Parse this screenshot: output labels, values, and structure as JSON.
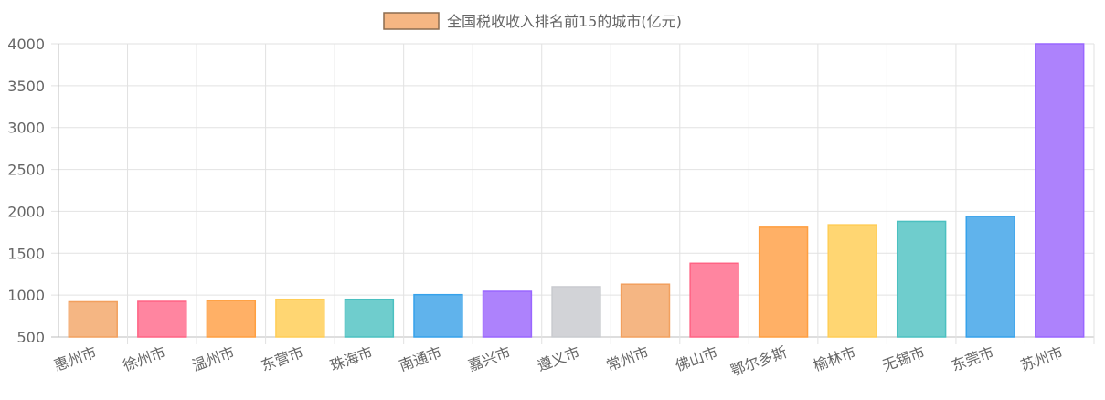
{
  "chart_data": {
    "type": "bar",
    "title": "",
    "xlabel": "",
    "ylabel": "",
    "legend": {
      "position": "top",
      "label": "全国税收收入排名前15的城市(亿元)",
      "color": "#f5b683",
      "border": "#8c6b4f"
    },
    "categories": [
      "惠州市",
      "徐州市",
      "温州市",
      "东营市",
      "珠海市",
      "南通市",
      "嘉兴市",
      "遵义市",
      "常州市",
      "佛山市",
      "鄂尔多斯",
      "榆林市",
      "无锡市",
      "东莞市",
      "苏州市"
    ],
    "series": [
      {
        "name": "全国税收收入排名前15的城市(亿元)",
        "values": [
          920,
          925,
          935,
          950,
          950,
          1005,
          1045,
          1100,
          1130,
          1380,
          1810,
          1840,
          1880,
          1940,
          4000
        ]
      }
    ],
    "ylim": [
      500,
      4000
    ],
    "yticks": [
      500,
      1000,
      1500,
      2000,
      2500,
      3000,
      3500,
      4000
    ],
    "grid": true,
    "bar_colors": [
      {
        "fill": "#f5b683",
        "stroke": "#f2a05e"
      },
      {
        "fill": "#ff85a0",
        "stroke": "#ff6384"
      },
      {
        "fill": "#ffb066",
        "stroke": "#ff9f40"
      },
      {
        "fill": "#ffd672",
        "stroke": "#ffcd56"
      },
      {
        "fill": "#6fcdcd",
        "stroke": "#4bc0c0"
      },
      {
        "fill": "#60b3ec",
        "stroke": "#36a2eb"
      },
      {
        "fill": "#ad82fc",
        "stroke": "#9966ff"
      },
      {
        "fill": "#d2d3d7",
        "stroke": "#c9cbcf"
      }
    ]
  }
}
